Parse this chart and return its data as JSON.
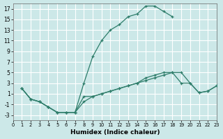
{
  "bg_color": "#cce8e8",
  "grid_color": "#ffffff",
  "line_color": "#2e7d6a",
  "xlabel": "Humidex (Indice chaleur)",
  "xlim": [
    0,
    23
  ],
  "ylim": [
    -4,
    18
  ],
  "yticks": [
    -3,
    -1,
    1,
    3,
    5,
    7,
    9,
    11,
    13,
    15,
    17
  ],
  "xticks": [
    0,
    1,
    2,
    3,
    4,
    5,
    6,
    7,
    8,
    9,
    10,
    11,
    12,
    13,
    14,
    15,
    16,
    17,
    18,
    19,
    20,
    21,
    22,
    23
  ],
  "curve1_x": [
    1,
    2,
    3,
    4,
    5,
    6,
    7,
    8,
    9,
    10,
    11,
    12,
    13,
    14,
    15,
    16,
    17,
    18
  ],
  "curve1_y": [
    2,
    0,
    -0.5,
    -1.5,
    -2.5,
    -2.5,
    -2.5,
    3,
    8,
    11,
    13,
    14,
    15.5,
    16,
    17.5,
    17.5,
    16.5,
    15.5
  ],
  "curve2_x": [
    1,
    2,
    3,
    4,
    5,
    6,
    7,
    8,
    9,
    10,
    11,
    12,
    13,
    14,
    15,
    16,
    17,
    18,
    19,
    20,
    21,
    22,
    23
  ],
  "curve2_y": [
    2,
    0,
    -0.5,
    -1.5,
    -2.5,
    -2.5,
    -2.5,
    0.5,
    0.5,
    1,
    1.5,
    2,
    2.5,
    3,
    4,
    4.5,
    5,
    5,
    5,
    3,
    1.2,
    1.5,
    2.5
  ],
  "curve3_x": [
    1,
    2,
    3,
    4,
    5,
    6,
    7,
    8,
    9,
    10,
    11,
    12,
    13,
    14,
    15,
    16,
    17,
    18,
    19,
    20,
    21,
    22,
    23
  ],
  "curve3_y": [
    2,
    0,
    -0.5,
    -1.5,
    -2.5,
    -2.5,
    -2.5,
    -0.5,
    0.5,
    1,
    1.5,
    2,
    2.5,
    3,
    3.5,
    4,
    4.5,
    5,
    3,
    3,
    1.2,
    1.5,
    2.5
  ]
}
